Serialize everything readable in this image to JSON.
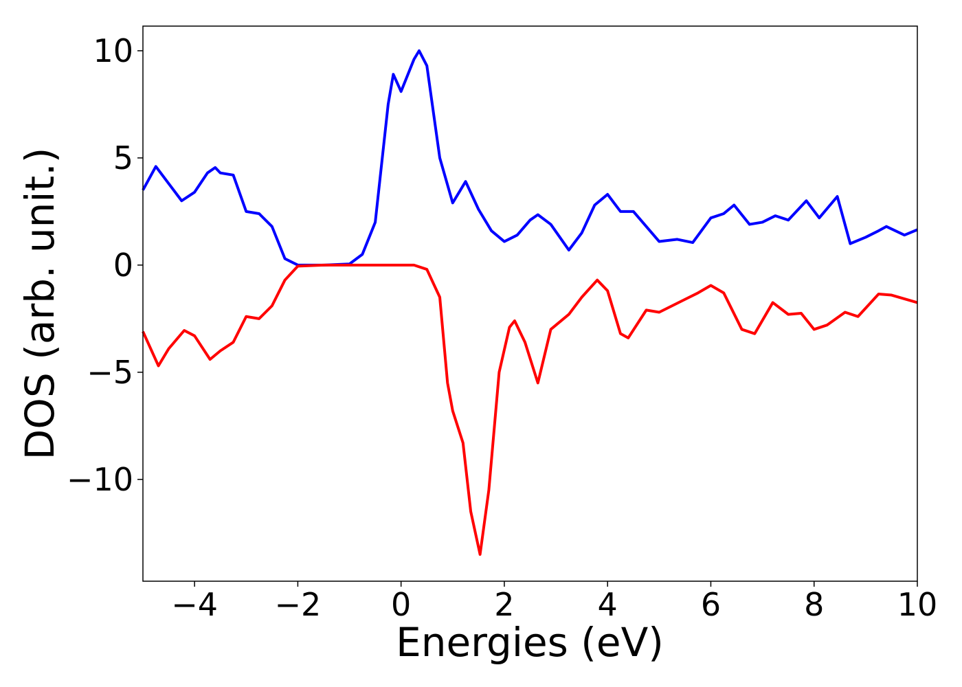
{
  "chart_data": {
    "type": "line",
    "x_label": "Energies (eV)",
    "y_label": "DOS (arb. unit.)",
    "xlim": [
      -5,
      10
    ],
    "ylim": [
      -14.75,
      11.15
    ],
    "xticks": [
      {
        "value": -4,
        "label": "−4"
      },
      {
        "value": -2,
        "label": "−2"
      },
      0,
      2,
      4,
      6,
      8,
      10
    ],
    "yticks": [
      {
        "value": -10,
        "label": "−10"
      },
      {
        "value": -5,
        "label": "−5"
      },
      0,
      5,
      10
    ],
    "grid": false,
    "series": [
      {
        "color": "#0000ff",
        "x": [
          -5,
          -4.75,
          -4.5,
          -4.25,
          -4.0,
          -3.75,
          -3.6,
          -3.5,
          -3.25,
          -3.0,
          -2.75,
          -2.5,
          -2.25,
          -2.0,
          -1.5,
          -1.0,
          -0.75,
          -0.5,
          -0.25,
          -0.15,
          0.0,
          0.25,
          0.35,
          0.5,
          0.75,
          1.0,
          1.25,
          1.5,
          1.75,
          2.0,
          2.25,
          2.5,
          2.65,
          2.9,
          3.25,
          3.5,
          3.75,
          4.0,
          4.25,
          4.5,
          4.75,
          5.0,
          5.35,
          5.65,
          6.0,
          6.25,
          6.45,
          6.75,
          7.0,
          7.25,
          7.5,
          7.85,
          8.1,
          8.45,
          8.7,
          9.0,
          9.25,
          9.4,
          9.75,
          10
        ],
        "values": [
          3.5,
          4.6,
          3.8,
          3.0,
          3.4,
          4.3,
          4.55,
          4.3,
          4.2,
          2.5,
          2.4,
          1.8,
          0.3,
          0.0,
          0,
          0.05,
          0.5,
          2.0,
          7.5,
          8.9,
          8.1,
          9.6,
          10.0,
          9.3,
          5.0,
          2.9,
          3.9,
          2.6,
          1.6,
          1.1,
          1.4,
          2.1,
          2.35,
          1.9,
          0.7,
          1.5,
          2.8,
          3.3,
          2.5,
          2.5,
          1.8,
          1.1,
          1.2,
          1.05,
          2.2,
          2.4,
          2.8,
          1.9,
          2.0,
          2.3,
          2.1,
          3.0,
          2.2,
          3.2,
          1.0,
          1.3,
          1.6,
          1.8,
          1.4,
          1.65
        ]
      },
      {
        "color": "#ff0000",
        "x": [
          -5,
          -4.7,
          -4.5,
          -4.2,
          -4.0,
          -3.7,
          -3.5,
          -3.25,
          -3.0,
          -2.75,
          -2.5,
          -2.25,
          -2.0,
          -1.5,
          0.25,
          0.5,
          0.75,
          0.9,
          1.0,
          1.2,
          1.35,
          1.53,
          1.7,
          1.9,
          2.1,
          2.2,
          2.4,
          2.65,
          2.9,
          3.25,
          3.5,
          3.8,
          4.0,
          4.25,
          4.4,
          4.75,
          5.0,
          5.25,
          5.5,
          5.75,
          6.0,
          6.25,
          6.6,
          6.85,
          7.2,
          7.5,
          7.75,
          8.0,
          8.25,
          8.6,
          8.85,
          9.25,
          9.5,
          10
        ],
        "values": [
          -3.1,
          -4.7,
          -3.9,
          -3.05,
          -3.3,
          -4.4,
          -4.0,
          -3.6,
          -2.4,
          -2.5,
          -1.9,
          -0.7,
          -0.05,
          0,
          0,
          -0.2,
          -1.5,
          -5.5,
          -6.8,
          -8.3,
          -11.5,
          -13.5,
          -10.5,
          -5,
          -2.9,
          -2.6,
          -3.6,
          -5.5,
          -3,
          -2.3,
          -1.5,
          -0.7,
          -1.2,
          -3.2,
          -3.4,
          -2.1,
          -2.2,
          -1.9,
          -1.6,
          -1.3,
          -0.95,
          -1.3,
          -3.0,
          -3.2,
          -1.75,
          -2.3,
          -2.25,
          -3.0,
          -2.8,
          -2.2,
          -2.4,
          -1.35,
          -1.4,
          -1.75
        ]
      }
    ]
  }
}
